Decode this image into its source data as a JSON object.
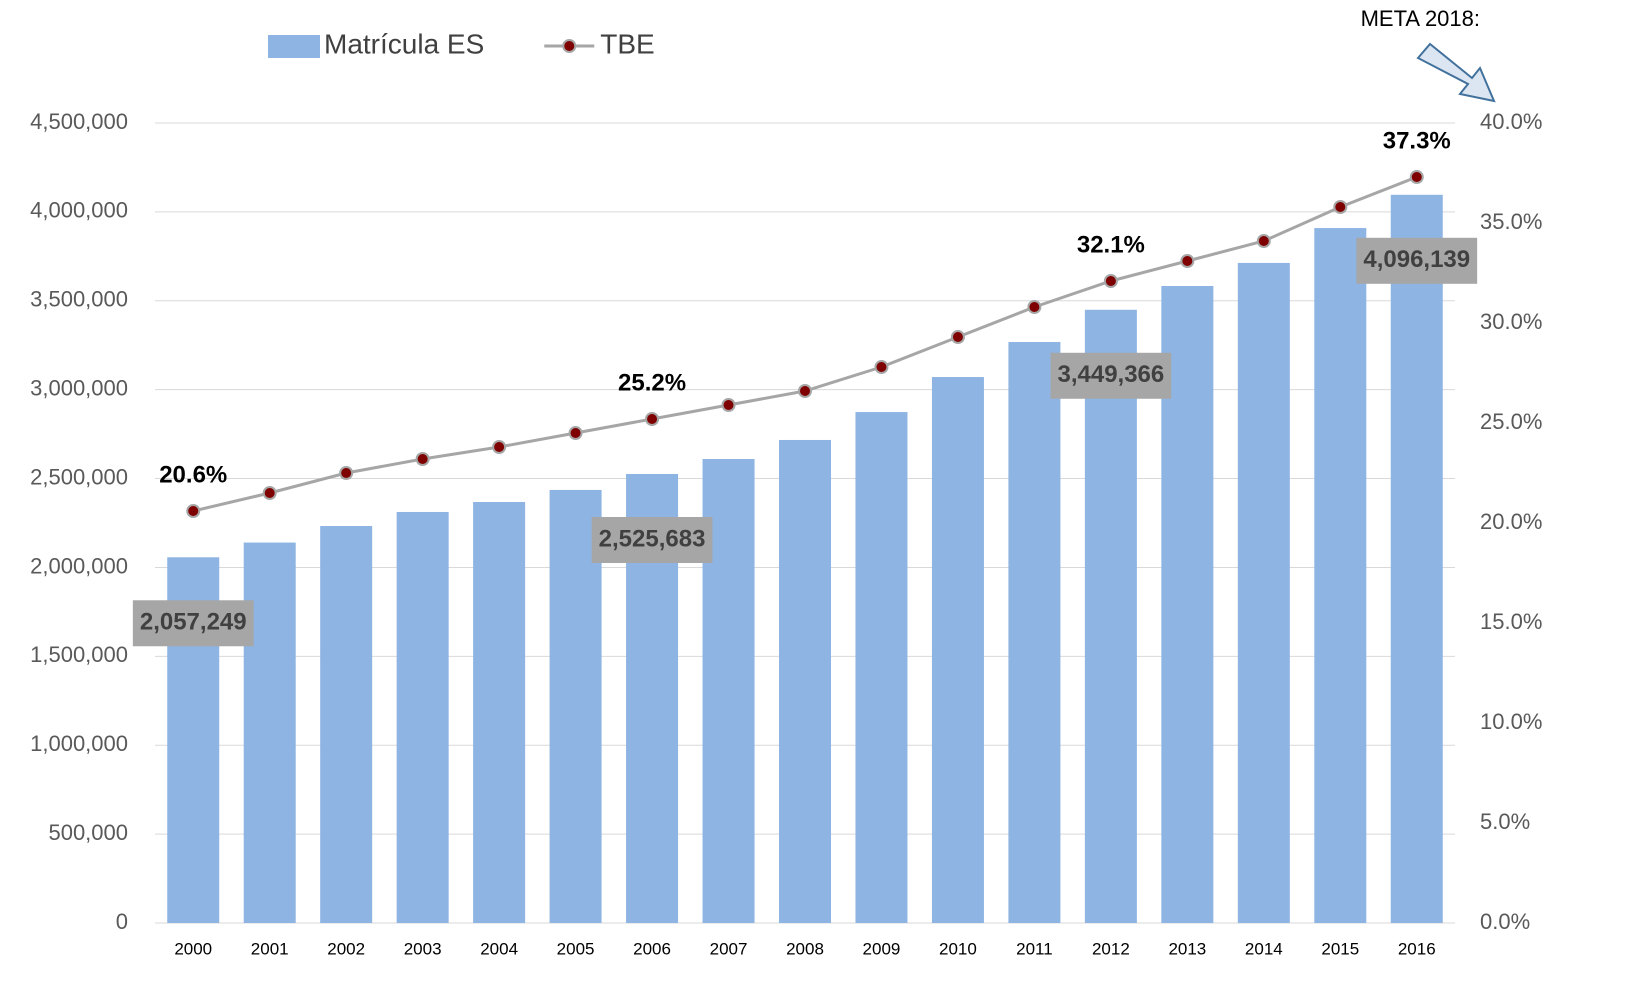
{
  "chart_data": {
    "type": "bar_line",
    "annotation": "META 2018:",
    "categories": [
      "2000",
      "2001",
      "2002",
      "2003",
      "2004",
      "2005",
      "2006",
      "2007",
      "2008",
      "2009",
      "2010",
      "2011",
      "2012",
      "2013",
      "2014",
      "2015",
      "2016"
    ],
    "series": [
      {
        "name": "Matrícula ES",
        "type": "bar",
        "color": "#8eb4e3",
        "values": [
          2057249,
          2140000,
          2233000,
          2312000,
          2368000,
          2436000,
          2525683,
          2610000,
          2717000,
          2874000,
          3071000,
          3268000,
          3449366,
          3583000,
          3713000,
          3909000,
          4096139
        ],
        "value_labels": [
          "2,057,249",
          null,
          null,
          null,
          null,
          null,
          "2,525,683",
          null,
          null,
          null,
          null,
          null,
          "3,449,366",
          null,
          null,
          null,
          "4,096,139"
        ]
      },
      {
        "name": "TBE",
        "type": "line",
        "axis": "y2",
        "color": "#a6a6a6",
        "marker_color": "#7f0000",
        "values": [
          20.6,
          21.5,
          22.5,
          23.2,
          23.8,
          24.5,
          25.2,
          25.9,
          26.6,
          27.8,
          29.3,
          30.8,
          32.1,
          33.1,
          34.1,
          35.8,
          37.3
        ],
        "value_labels": [
          "20.6%",
          null,
          null,
          null,
          null,
          null,
          "25.2%",
          null,
          null,
          null,
          null,
          null,
          "32.1%",
          null,
          null,
          null,
          "37.3%"
        ]
      }
    ],
    "ylim": [
      0,
      4500000
    ],
    "yticks": [
      {
        "value": 0,
        "label": "0"
      },
      {
        "value": 500000,
        "label": "500,000"
      },
      {
        "value": 1000000,
        "label": "1,000,000"
      },
      {
        "value": 1500000,
        "label": "1,500,000"
      },
      {
        "value": 2000000,
        "label": "2,000,000"
      },
      {
        "value": 2500000,
        "label": "2,500,000"
      },
      {
        "value": 3000000,
        "label": "3,000,000"
      },
      {
        "value": 3500000,
        "label": "3,500,000"
      },
      {
        "value": 4000000,
        "label": "4,000,000"
      },
      {
        "value": 4500000,
        "label": "4,500,000"
      }
    ],
    "y2lim": [
      0,
      40
    ],
    "y2ticks": [
      {
        "value": 0,
        "label": "0.0%"
      },
      {
        "value": 5,
        "label": "5.0%"
      },
      {
        "value": 10,
        "label": "10.0%"
      },
      {
        "value": 15,
        "label": "15.0%"
      },
      {
        "value": 20,
        "label": "20.0%"
      },
      {
        "value": 25,
        "label": "25.0%"
      },
      {
        "value": 30,
        "label": "30.0%"
      },
      {
        "value": 35,
        "label": "35.0%"
      },
      {
        "value": 40,
        "label": "40.0%"
      }
    ],
    "grid": true
  }
}
